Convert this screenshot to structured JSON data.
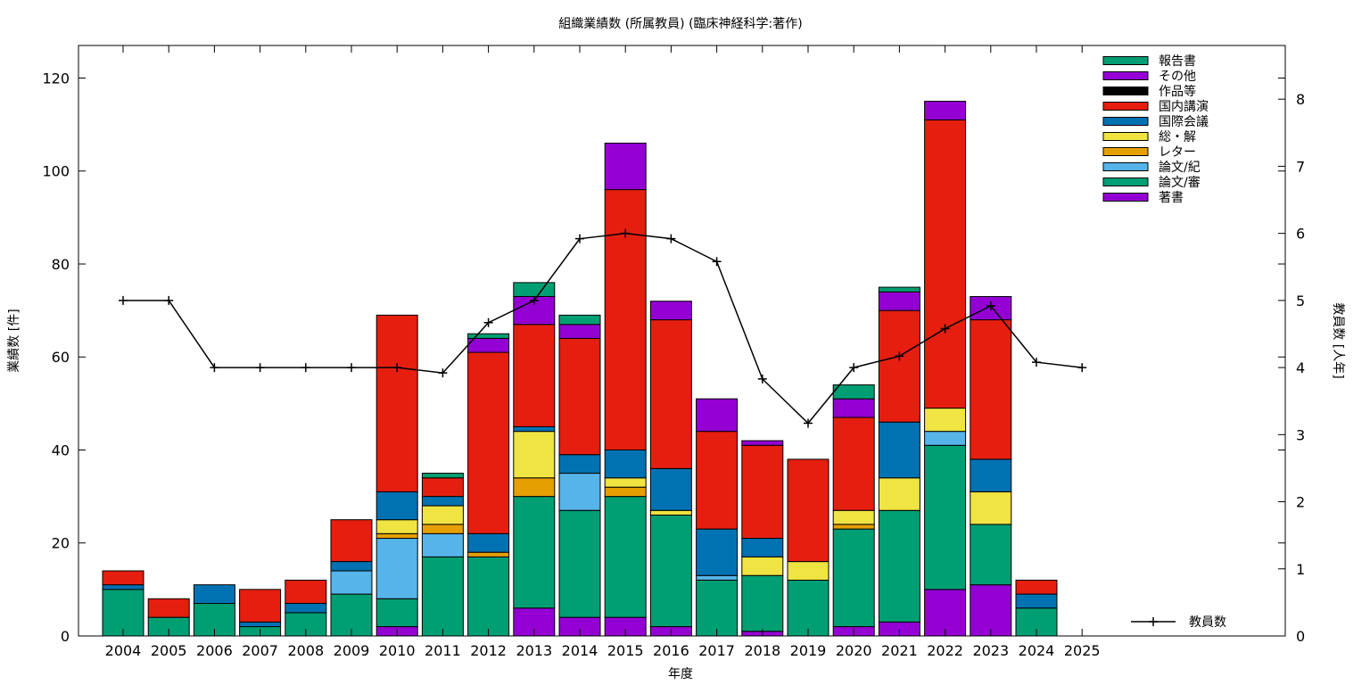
{
  "chart_data": {
    "type": "bar",
    "title": "組織業績数 (所属教員) (臨床神経科学:著作)",
    "xlabel": "年度",
    "ylabel": "業績数 [件]",
    "y2label": "教員数 [人年]",
    "ylim": [
      0,
      127
    ],
    "y2lim": [
      0,
      8.8
    ],
    "yticks": [
      0,
      20,
      40,
      60,
      80,
      100,
      120
    ],
    "y2ticks": [
      0,
      1,
      2,
      3,
      4,
      5,
      6,
      7,
      8
    ],
    "grid": false,
    "legend_position": "top-right",
    "categories": [
      "2004",
      "2005",
      "2006",
      "2007",
      "2008",
      "2009",
      "2010",
      "2011",
      "2012",
      "2013",
      "2014",
      "2015",
      "2016",
      "2017",
      "2018",
      "2019",
      "2020",
      "2021",
      "2022",
      "2023",
      "2024",
      "2025"
    ],
    "series": [
      {
        "name": "著書",
        "color": "#9400d3",
        "values": [
          0,
          0,
          0,
          0,
          0,
          0,
          2,
          0,
          0,
          6,
          4,
          4,
          2,
          0,
          1,
          0,
          2,
          3,
          10,
          11,
          0,
          0
        ]
      },
      {
        "name": "論文/審",
        "color": "#009e73",
        "values": [
          10,
          4,
          7,
          2,
          5,
          9,
          6,
          17,
          17,
          24,
          23,
          26,
          24,
          12,
          12,
          12,
          21,
          24,
          31,
          13,
          6,
          0
        ]
      },
      {
        "name": "論文/紀",
        "color": "#56b4e9",
        "values": [
          0,
          0,
          0,
          0,
          0,
          5,
          13,
          5,
          0,
          0,
          8,
          0,
          0,
          1,
          0,
          0,
          0,
          0,
          3,
          0,
          0,
          0
        ]
      },
      {
        "name": "レター",
        "color": "#e69f00",
        "values": [
          0,
          0,
          0,
          0,
          0,
          0,
          1,
          2,
          1,
          4,
          0,
          2,
          0,
          0,
          0,
          0,
          1,
          0,
          0,
          0,
          0,
          0
        ]
      },
      {
        "name": "総・解",
        "color": "#f0e442",
        "values": [
          0,
          0,
          0,
          0,
          0,
          0,
          3,
          4,
          0,
          10,
          0,
          2,
          1,
          0,
          4,
          4,
          3,
          7,
          5,
          7,
          0,
          0
        ]
      },
      {
        "name": "国際会議",
        "color": "#0072b2",
        "values": [
          1,
          0,
          4,
          1,
          2,
          2,
          6,
          2,
          4,
          1,
          4,
          6,
          9,
          10,
          4,
          0,
          0,
          12,
          0,
          7,
          3,
          0
        ]
      },
      {
        "name": "国内講演",
        "color": "#e51e10",
        "values": [
          3,
          4,
          0,
          7,
          5,
          9,
          38,
          4,
          39,
          22,
          25,
          56,
          32,
          21,
          20,
          22,
          20,
          24,
          62,
          30,
          3,
          0
        ]
      },
      {
        "name": "作品等",
        "color": "#000000",
        "values": [
          0,
          0,
          0,
          0,
          0,
          0,
          0,
          0,
          0,
          0,
          0,
          0,
          0,
          0,
          0,
          0,
          0,
          0,
          0,
          0,
          0,
          0
        ]
      },
      {
        "name": "その他",
        "color": "#9400d3",
        "values": [
          0,
          0,
          0,
          0,
          0,
          0,
          0,
          0,
          3,
          6,
          3,
          10,
          4,
          7,
          1,
          0,
          4,
          4,
          4,
          5,
          0,
          0
        ]
      },
      {
        "name": "報告書",
        "color": "#009e73",
        "values": [
          0,
          0,
          0,
          0,
          0,
          0,
          0,
          1,
          1,
          3,
          2,
          0,
          0,
          0,
          0,
          0,
          3,
          1,
          0,
          0,
          0,
          0
        ]
      }
    ],
    "line_series": {
      "name": "教員数",
      "color": "#000000",
      "values": [
        5,
        5,
        4,
        4,
        4,
        4,
        4,
        3.92,
        4.67,
        5,
        5.92,
        6,
        5.92,
        5.58,
        3.83,
        3.17,
        4,
        4.17,
        4.58,
        4.92,
        4.08,
        4.0
      ]
    }
  }
}
